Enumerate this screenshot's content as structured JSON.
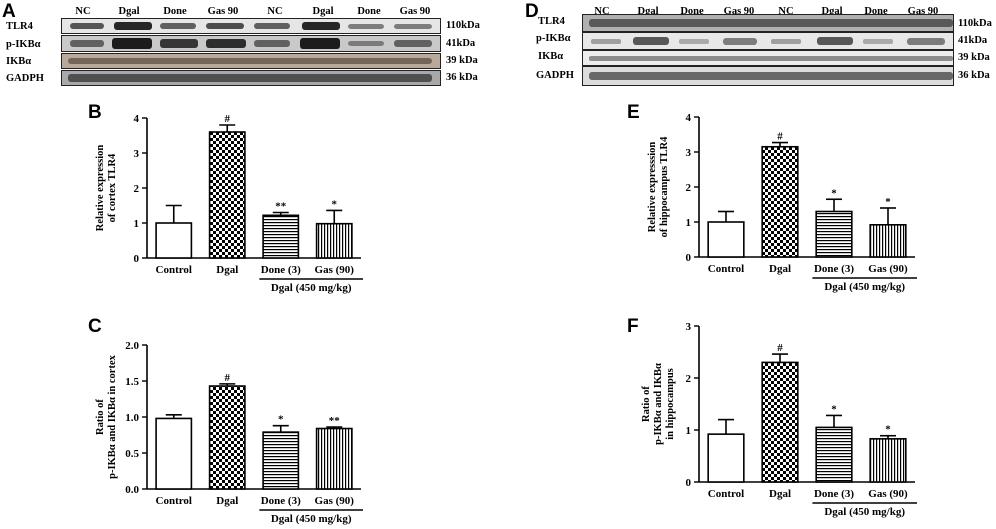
{
  "panel_letters": {
    "A": "A",
    "B": "B",
    "C": "C",
    "D": "D",
    "E": "E",
    "F": "F"
  },
  "blot_A": {
    "lanes": [
      "NC",
      "Dgal",
      "Done",
      "Gas 90",
      "NC",
      "Dgal",
      "Done",
      "Gas 90"
    ],
    "rows": [
      {
        "label": "TLR4",
        "kda": "110kDa"
      },
      {
        "label": "p-IKBα",
        "kda": "41kDa"
      },
      {
        "label": "IKBα",
        "kda": "39 kDa"
      },
      {
        "label": "GADPH",
        "kda": "36 kDa"
      }
    ]
  },
  "blot_D": {
    "lanes": [
      "NC",
      "Dgal",
      "Done",
      "Gas 90",
      "NC",
      "Dgal",
      "Done",
      "Gas 90"
    ],
    "rows": [
      {
        "label": "TLR4",
        "kda": "110kDa"
      },
      {
        "label": "p-IKBα",
        "kda": "41kDa"
      },
      {
        "label": "IKBα",
        "kda": "39 kDa"
      },
      {
        "label": "GADPH",
        "kda": "36 kDa"
      }
    ]
  },
  "colors": {
    "ink": "#000000",
    "bar_fill": "#ffffff",
    "blot_bg": "#e4e4e4",
    "band": "#2a2a2a"
  },
  "chart_data": [
    {
      "id": "B",
      "type": "bar",
      "categories": [
        "Control",
        "Dgal",
        "Done (3)",
        "Gas (90)"
      ],
      "values": [
        1.0,
        3.6,
        1.22,
        0.98
      ],
      "errors": [
        0.5,
        0.2,
        0.08,
        0.38
      ],
      "significance": [
        "",
        "#",
        "**",
        "*"
      ],
      "patterns": [
        "none",
        "checker",
        "hlines",
        "vlines"
      ],
      "ylabel": [
        "Relative expression",
        "of cortex TLR4"
      ],
      "ylim": [
        0,
        4
      ],
      "yticks": [
        "0",
        "1",
        "2",
        "3",
        "4"
      ],
      "group_label": "Dgal (450 mg/kg)"
    },
    {
      "id": "C",
      "type": "bar",
      "categories": [
        "Control",
        "Dgal",
        "Done (3)",
        "Gas (90)"
      ],
      "values": [
        0.98,
        1.43,
        0.79,
        0.84
      ],
      "errors": [
        0.05,
        0.03,
        0.09,
        0.02
      ],
      "significance": [
        "",
        "#",
        "*",
        "**"
      ],
      "patterns": [
        "none",
        "checker",
        "hlines",
        "vlines"
      ],
      "ylabel": [
        "Ratio of",
        "p-IKBα and IKBα in cortex"
      ],
      "ylim": [
        0,
        2.0
      ],
      "yticks": [
        "0.0",
        "0.5",
        "1.0",
        "1.5",
        "2.0"
      ],
      "group_label": "Dgal (450 mg/kg)"
    },
    {
      "id": "E",
      "type": "bar",
      "categories": [
        "Control",
        "Dgal",
        "Done (3)",
        "Gas (90)"
      ],
      "values": [
        1.0,
        3.15,
        1.3,
        0.92
      ],
      "errors": [
        0.3,
        0.12,
        0.35,
        0.48
      ],
      "significance": [
        "",
        "#",
        "*",
        "*"
      ],
      "patterns": [
        "none",
        "checker",
        "hlines",
        "vlines"
      ],
      "ylabel": [
        "Relative expresssion",
        "of hippocampus TLR4"
      ],
      "ylim": [
        0,
        4
      ],
      "yticks": [
        "0",
        "1",
        "2",
        "3",
        "4"
      ],
      "group_label": "Dgal (450 mg/kg)"
    },
    {
      "id": "F",
      "type": "bar",
      "categories": [
        "Control",
        "Dgal",
        "Done (3)",
        "Gas (90)"
      ],
      "values": [
        0.92,
        2.3,
        1.05,
        0.83
      ],
      "errors": [
        0.28,
        0.16,
        0.23,
        0.06
      ],
      "significance": [
        "",
        "#",
        "*",
        "*"
      ],
      "patterns": [
        "none",
        "checker",
        "hlines",
        "vlines"
      ],
      "ylabel": [
        "Ratio of",
        "p-IKBα and IKBα",
        "in hippocampus"
      ],
      "ylim": [
        0,
        3
      ],
      "yticks": [
        "0",
        "1",
        "2",
        "3"
      ],
      "group_label": "Dgal (450 mg/kg)"
    }
  ]
}
